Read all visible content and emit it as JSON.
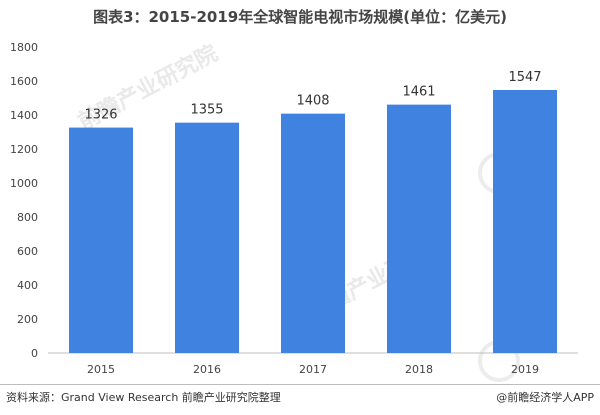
{
  "page": {
    "title": "图表3：2015-2019年全球智能电视市场规模(单位：亿美元)",
    "source": "资料来源：Grand View Research 前瞻产业研究院整理",
    "brand": "@前瞻经济学人APP",
    "watermark": "前瞻产业研究院"
  },
  "colors": {
    "bar": "#3f82e0",
    "axis": "#bfbfbf",
    "tick_text": "#444444",
    "label_text": "#333333"
  },
  "chart_data": {
    "type": "bar",
    "title": "图表3：2015-2019年全球智能电视市场规模(单位：亿美元)",
    "categories": [
      "2015",
      "2016",
      "2017",
      "2018",
      "2019"
    ],
    "values": [
      1326,
      1355,
      1408,
      1461,
      1547
    ],
    "data_labels": [
      "1326",
      "1355",
      "1408",
      "1461",
      "1547"
    ],
    "ylim": [
      0,
      1800
    ],
    "yticks": [
      0,
      200,
      400,
      600,
      800,
      1000,
      1200,
      1400,
      1600,
      1800
    ],
    "ytick_labels": [
      "0",
      "200",
      "400",
      "600",
      "800",
      "1000",
      "1200",
      "1400",
      "1600",
      "1800"
    ],
    "xlabel": "",
    "ylabel": "",
    "grid": false,
    "legend": "none"
  }
}
